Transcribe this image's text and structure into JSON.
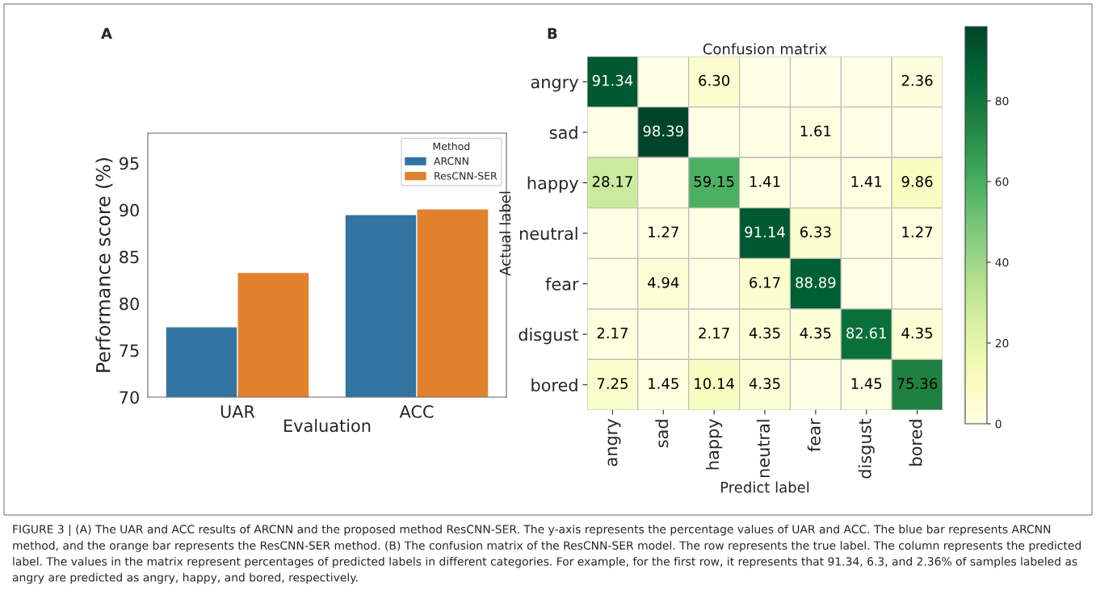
{
  "chart_data": [
    {
      "type": "bar",
      "categories": [
        "UAR",
        "ACC"
      ],
      "xlabel": "Evaluation",
      "ylabel": "Performance score (%)",
      "legend_title": "Method",
      "legend": "top right",
      "grid": false,
      "series": [
        {
          "name": "ARCNN",
          "color": "#3274a1",
          "values": [
            77.5,
            89.5
          ]
        },
        {
          "name": "ResCNN-SER",
          "color": "#e1812c",
          "values": [
            83.3,
            90.1
          ]
        }
      ],
      "ylim": [
        70,
        98.2
      ],
      "yticks": [
        70,
        75,
        80,
        85,
        90,
        95
      ],
      "annotations": [
        "A",
        "FIGURE 3 | (A) The UAR and ACC results of ARCNN and the proposed method ResCNN-SER. The y-axis represents the percentage values of UAR and ACC. The blue bar represents ARCNN method, and the orange bar represents the ResCNN-SER method. (B) The confusion matrix of the ResCNN-SER model. The row represents the true label. The column represents the predicted label. The values in the matrix represent percentages of predicted labels in different categories. For example, for the first row, it represents that 91.34, 6.3, and 2.36% of samples labeled as angry are predicted as angry, happy, and bored, respectively."
      ]
    },
    {
      "type": "heatmap",
      "title": "Confusion matrix",
      "xlabel": "Predict label",
      "ylabel": "Actual label",
      "categories": [
        "angry",
        "sad",
        "happy",
        "neutral",
        "fear",
        "disgust",
        "bored"
      ],
      "y_categories": [
        "angry",
        "sad",
        "happy",
        "neutral",
        "fear",
        "disgust",
        "bored"
      ],
      "cells": [
        [
          91.34,
          0,
          6.3,
          0,
          0,
          0,
          2.36
        ],
        [
          0,
          98.39,
          0,
          0,
          1.61,
          0,
          0
        ],
        [
          28.17,
          0,
          59.15,
          1.41,
          0,
          1.41,
          9.86
        ],
        [
          0,
          1.27,
          0,
          91.14,
          6.33,
          0,
          1.27
        ],
        [
          0,
          4.94,
          0,
          6.17,
          88.89,
          0,
          0
        ],
        [
          2.17,
          0,
          2.17,
          4.35,
          4.35,
          82.61,
          4.35
        ],
        [
          7.25,
          1.45,
          10.14,
          4.35,
          0,
          1.45,
          75.36
        ]
      ],
      "cell_labels": [
        [
          "91.34",
          null,
          "6.30",
          null,
          null,
          null,
          "2.36"
        ],
        [
          null,
          "98.39",
          null,
          null,
          "1.61",
          null,
          null
        ],
        [
          "28.17",
          null,
          "59.15",
          "1.41",
          null,
          "1.41",
          "9.86"
        ],
        [
          null,
          "1.27",
          null,
          "91.14",
          "6.33",
          null,
          "1.27"
        ],
        [
          null,
          "4.94",
          null,
          "6.17",
          "88.89",
          null,
          null
        ],
        [
          "2.17",
          null,
          "2.17",
          "4.35",
          "4.35",
          "82.61",
          "4.35"
        ],
        [
          "7.25",
          "1.45",
          "10.14",
          "4.35",
          null,
          "1.45",
          "75.36"
        ]
      ],
      "clim": [
        0,
        98.39
      ],
      "cticks": [
        0,
        20,
        40,
        60,
        80
      ],
      "annotations": [
        "B"
      ]
    }
  ]
}
